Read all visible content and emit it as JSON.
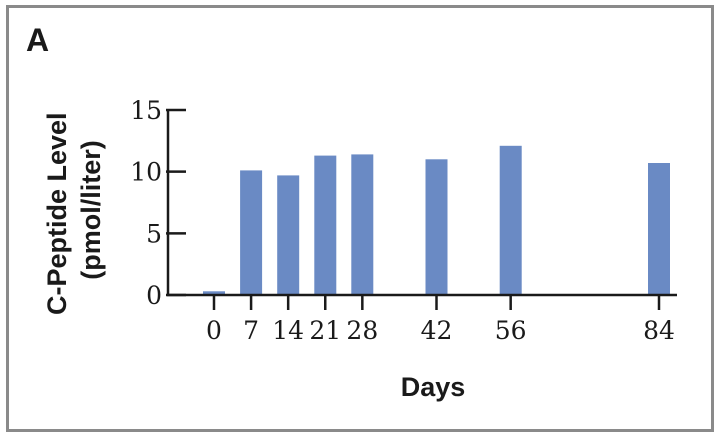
{
  "panel": {
    "label": "A"
  },
  "chart_data": {
    "type": "bar",
    "x": [
      0,
      7,
      14,
      21,
      28,
      42,
      56,
      84
    ],
    "tick_labels": [
      "0",
      "7",
      "14",
      "21",
      "28",
      "42",
      "56",
      "84"
    ],
    "values": [
      0.3,
      10.1,
      9.7,
      11.3,
      11.4,
      11.0,
      12.1,
      10.7
    ],
    "xlim": [
      0,
      84
    ],
    "ylim": [
      0,
      15
    ],
    "yticks": [
      0,
      5,
      10,
      15
    ],
    "title": "",
    "xlabel": "Days",
    "ylabel_lines": [
      "C-Peptide Level",
      "(pmol/liter)"
    ],
    "grid": false,
    "legend": "none",
    "colors": {
      "bar": "#6a8ac4",
      "axis": "#1a1a1a",
      "frame": "#8a8a8a"
    }
  }
}
